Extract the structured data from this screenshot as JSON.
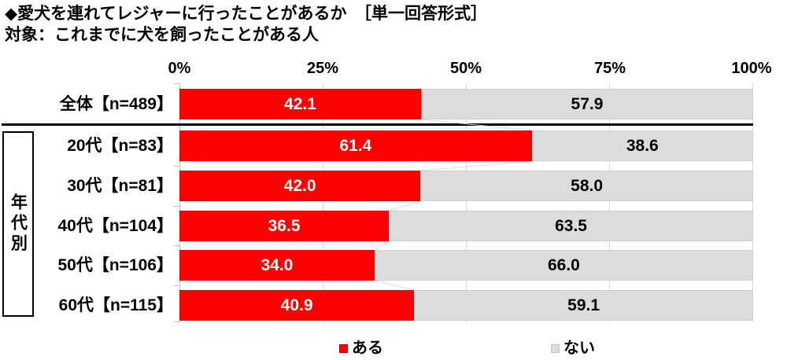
{
  "chart_data": {
    "type": "bar",
    "variant": "horizontal-stacked-100pct",
    "title": "◆愛犬を連れてレジャーに行ったことがあるか　［単一回答形式］",
    "subject": "対象：これまでに犬を飼ったことがある人",
    "axis": {
      "tick_labels": [
        "0%",
        "25%",
        "50%",
        "75%",
        "100%"
      ],
      "range": [
        0,
        100
      ],
      "grid": true
    },
    "group_label": "年代別",
    "legend": [
      {
        "label": "ある",
        "color": "#ff0000"
      },
      {
        "label": "ない",
        "color": "#dcdcdc"
      }
    ],
    "categories": [
      "全体【n=489】",
      "20代【n=83】",
      "30代【n=81】",
      "40代【n=104】",
      "50代【n=106】",
      "60代【n=115】"
    ],
    "series": [
      {
        "name": "ある",
        "color": "#ff0000",
        "values": [
          42.1,
          61.4,
          42.0,
          36.5,
          34.0,
          40.9
        ]
      },
      {
        "name": "ない",
        "color": "#dcdcdc",
        "values": [
          57.9,
          38.6,
          58.0,
          63.5,
          66.0,
          59.1
        ]
      }
    ],
    "rows": [
      {
        "label": "全体【n=489】",
        "aru": "42.1",
        "nai": "57.9"
      },
      {
        "label": "20代【n=83】",
        "aru": "61.4",
        "nai": "38.6"
      },
      {
        "label": "30代【n=81】",
        "aru": "42.0",
        "nai": "58.0"
      },
      {
        "label": "40代【n=104】",
        "aru": "36.5",
        "nai": "63.5"
      },
      {
        "label": "50代【n=106】",
        "aru": "34.0",
        "nai": "66.0"
      },
      {
        "label": "60代【n=115】",
        "aru": "40.9",
        "nai": "59.1"
      }
    ]
  }
}
